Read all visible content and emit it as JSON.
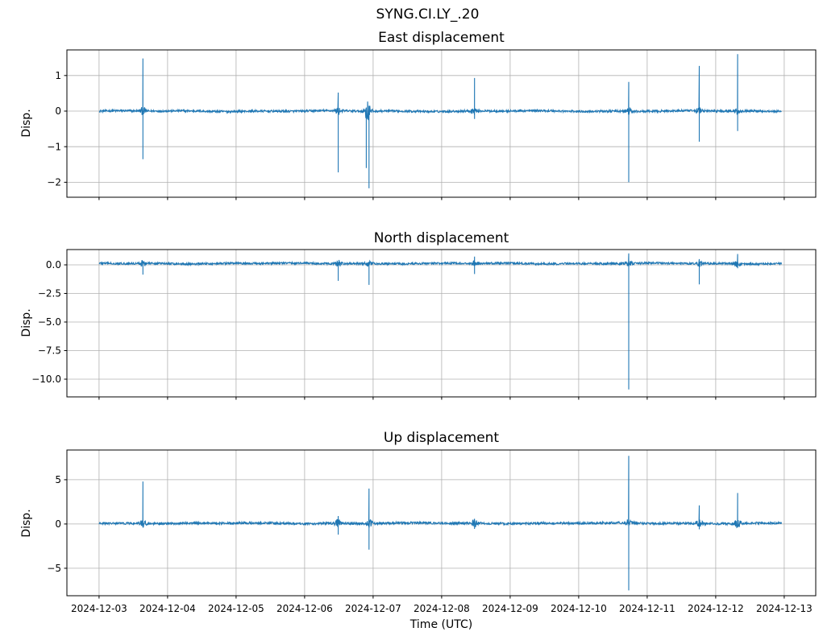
{
  "chart_data": {
    "type": "line",
    "suptitle": "SYNG.CI.LY_.20",
    "legend": null,
    "grid": true,
    "style": {
      "line_color": "#1f77b4",
      "grid_color": "#b0b0b0",
      "spine_color": "#000000",
      "background": "#ffffff",
      "text_color": "#000000"
    },
    "x_axis": {
      "label": "Time (UTC)",
      "unit": "days since 2024-12-03 00:00 UTC",
      "range": [
        -0.47,
        10.46
      ],
      "data_range": [
        0,
        9.96
      ],
      "ticks": [
        {
          "value": 0,
          "label": "2024-12-03"
        },
        {
          "value": 1,
          "label": "2024-12-04"
        },
        {
          "value": 2,
          "label": "2024-12-05"
        },
        {
          "value": 3,
          "label": "2024-12-06"
        },
        {
          "value": 4,
          "label": "2024-12-07"
        },
        {
          "value": 5,
          "label": "2024-12-08"
        },
        {
          "value": 6,
          "label": "2024-12-09"
        },
        {
          "value": 7,
          "label": "2024-12-10"
        },
        {
          "value": 8,
          "label": "2024-12-11"
        },
        {
          "value": 9,
          "label": "2024-12-12"
        },
        {
          "value": 10,
          "label": "2024-12-13"
        }
      ]
    },
    "subplots": [
      {
        "title": "East displacement",
        "ylabel": "Disp.",
        "ylim": [
          -2.42,
          1.72
        ],
        "baseline": 0.0,
        "noise_amp": 0.03,
        "yticks": [
          {
            "value": 1,
            "label": "1"
          },
          {
            "value": 0,
            "label": "0"
          },
          {
            "value": -1,
            "label": "−1"
          },
          {
            "value": -2,
            "label": "−2"
          }
        ],
        "spikes": [
          {
            "x": 0.64,
            "up": 1.48,
            "down": -1.35
          },
          {
            "x": 3.49,
            "up": 0.52,
            "down": -1.72
          },
          {
            "x": 3.9,
            "up": 0.1,
            "down": -1.6
          },
          {
            "x": 3.94,
            "up": 0.15,
            "down": -2.17
          },
          {
            "x": 5.48,
            "up": 0.93,
            "down": -0.22
          },
          {
            "x": 7.73,
            "up": 0.82,
            "down": -2.0
          },
          {
            "x": 8.76,
            "up": 1.27,
            "down": -0.86
          },
          {
            "x": 9.32,
            "up": 1.6,
            "down": -0.56
          }
        ]
      },
      {
        "title": "North displacement",
        "ylabel": "Disp.",
        "ylim": [
          -11.55,
          1.34
        ],
        "baseline": 0.12,
        "noise_amp": 0.09,
        "yticks": [
          {
            "value": 0,
            "label": "0.0"
          },
          {
            "value": -2.5,
            "label": "−2.5"
          },
          {
            "value": -5,
            "label": "−5.0"
          },
          {
            "value": -7.5,
            "label": "−7.5"
          },
          {
            "value": -10,
            "label": "−10.0"
          }
        ],
        "spikes": [
          {
            "x": 0.64,
            "up": 0.12,
            "down": -0.85
          },
          {
            "x": 3.49,
            "up": 0.15,
            "down": -1.4
          },
          {
            "x": 3.94,
            "up": 0.15,
            "down": -1.75
          },
          {
            "x": 5.48,
            "up": 0.72,
            "down": -0.8
          },
          {
            "x": 7.73,
            "up": 1.0,
            "down": -10.9
          },
          {
            "x": 8.76,
            "up": 0.5,
            "down": -1.7
          },
          {
            "x": 9.32,
            "up": 0.95,
            "down": -0.3
          }
        ]
      },
      {
        "title": "Up displacement",
        "ylabel": "Disp.",
        "ylim": [
          -8.1,
          8.36
        ],
        "baseline": 0.08,
        "noise_amp": 0.13,
        "yticks": [
          {
            "value": 5,
            "label": "5"
          },
          {
            "value": 0,
            "label": "0"
          },
          {
            "value": -5,
            "label": "−5"
          }
        ],
        "spikes": [
          {
            "x": 0.64,
            "up": 4.8,
            "down": -0.4
          },
          {
            "x": 3.49,
            "up": 0.9,
            "down": -1.2
          },
          {
            "x": 3.94,
            "up": 4.0,
            "down": -2.9
          },
          {
            "x": 5.48,
            "up": 0.55,
            "down": -0.55
          },
          {
            "x": 7.73,
            "up": 7.7,
            "down": -7.5
          },
          {
            "x": 8.76,
            "up": 2.1,
            "down": -0.6
          },
          {
            "x": 9.32,
            "up": 3.5,
            "down": -0.4
          }
        ]
      }
    ]
  }
}
